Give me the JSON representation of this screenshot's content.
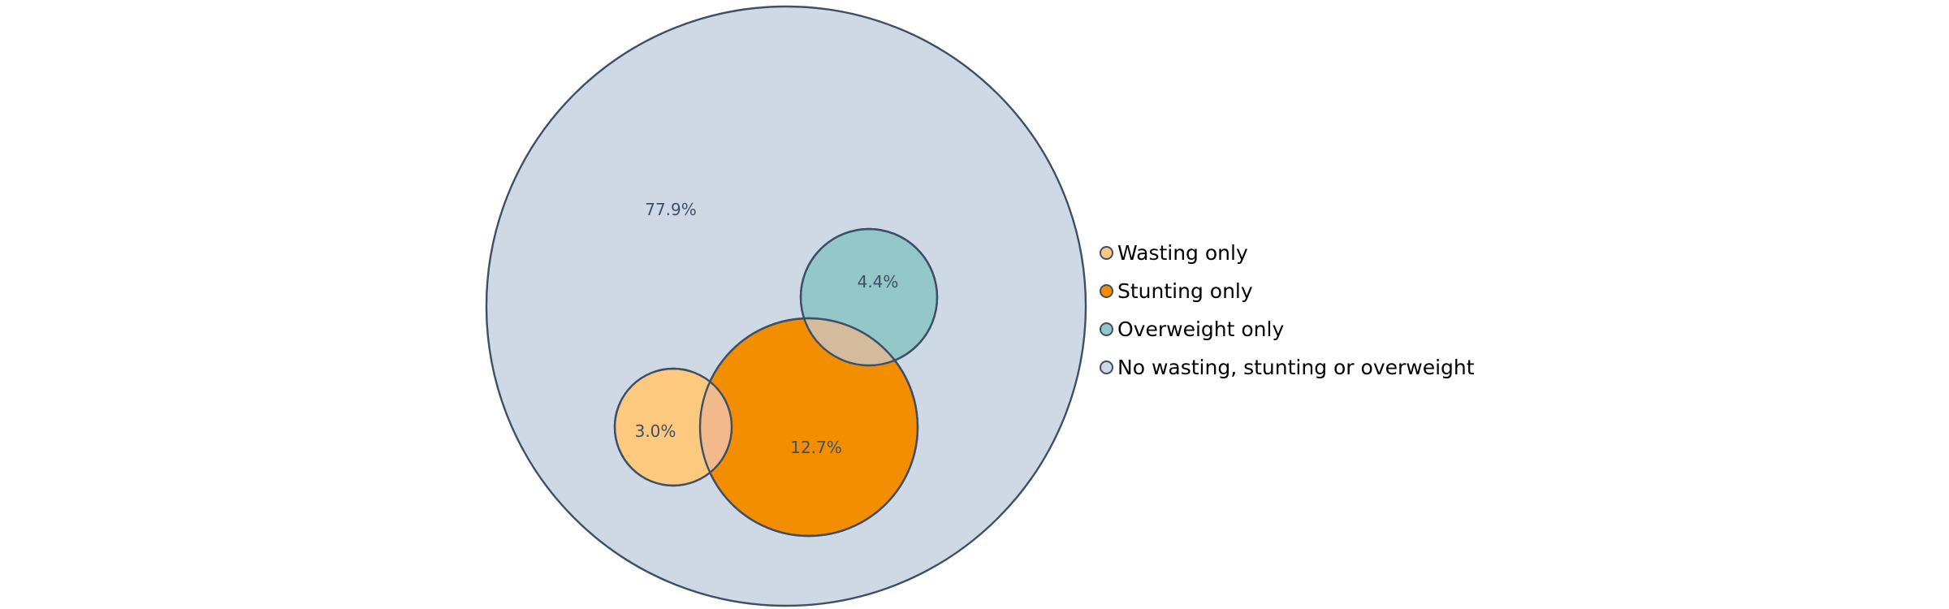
{
  "diagram": {
    "type": "nested-venn",
    "sets": [
      {
        "key": "none",
        "label": "No wasting, stunting or overweight",
        "percent_label": "77.9%",
        "color": "#cfd9e6"
      },
      {
        "key": "overweight",
        "label": "Overweight only",
        "percent_label": "4.4%",
        "color": "#93c7c8"
      },
      {
        "key": "stunting",
        "label": "Stunting only",
        "percent_label": "12.7%",
        "color": "#f28e00"
      },
      {
        "key": "wasting",
        "label": "Wasting only",
        "percent_label": "3.0%",
        "color": "#fcc97e"
      }
    ],
    "overlap_colors": {
      "stunting_overweight": "#d4bb9c",
      "stunting_wasting": "#f2b98c"
    },
    "stroke_color": "#3d5068"
  },
  "legend": {
    "items": [
      {
        "label": "Wasting only",
        "color": "#fcc97e"
      },
      {
        "label": "Stunting only",
        "color": "#f28e00"
      },
      {
        "label": "Overweight only",
        "color": "#93c7c8"
      },
      {
        "label": "No wasting, stunting or overweight",
        "color": "#cfd9e6"
      }
    ]
  }
}
